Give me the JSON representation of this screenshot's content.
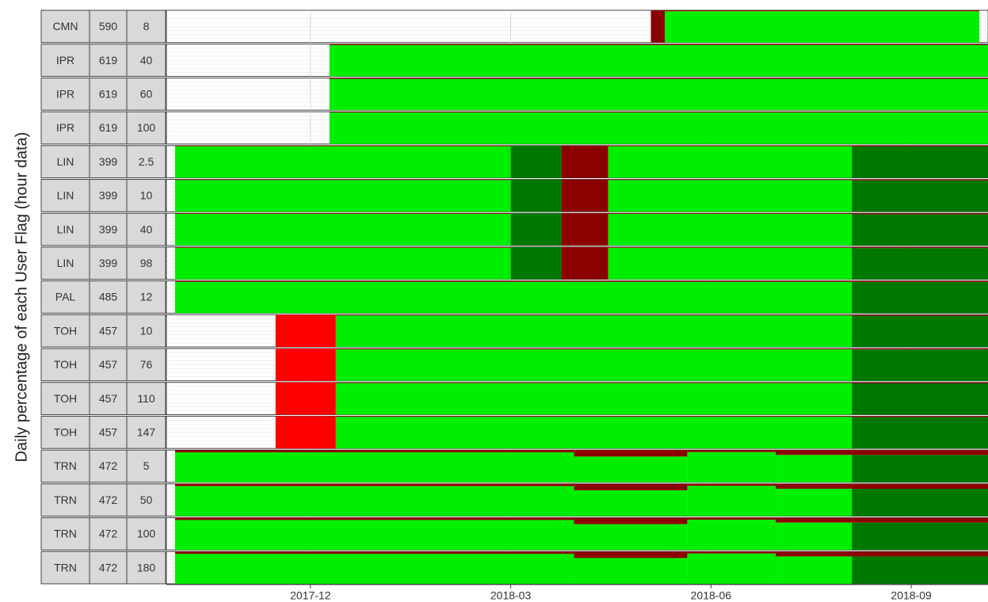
{
  "chart_data": {
    "type": "facet-timeline",
    "y_label": "Daily percentage of each User Flag (hour data)",
    "xlim": [
      0.842,
      13.15
    ],
    "xticks": [
      {
        "value": 3,
        "label": "2017-12"
      },
      {
        "value": 6,
        "label": "2018-03"
      },
      {
        "value": 9,
        "label": "2018-06"
      },
      {
        "value": 12,
        "label": "2018-09"
      }
    ],
    "ylim": [
      0,
      100
    ],
    "grid": true,
    "flag_colors": [
      "#00ee00",
      "#007800",
      "#ff0000",
      "#8b0000"
    ],
    "rows": [
      {
        "labels": [
          "CMN",
          "590",
          "8"
        ],
        "periods": [
          {
            "start": 8.1,
            "end": 8.31,
            "shares": [
              0,
              0,
              0,
              100
            ]
          },
          {
            "start": 8.31,
            "end": 13.02,
            "shares": [
              97,
              0,
              0,
              3
            ]
          }
        ]
      },
      {
        "labels": [
          "IPR",
          "619",
          "40"
        ],
        "periods": [
          {
            "start": 3.285,
            "end": 13.15,
            "shares": [
              97,
              0,
              0,
              3
            ]
          }
        ]
      },
      {
        "labels": [
          "IPR",
          "619",
          "60"
        ],
        "periods": [
          {
            "start": 3.285,
            "end": 13.15,
            "shares": [
              97,
              0,
              0,
              3
            ]
          }
        ]
      },
      {
        "labels": [
          "IPR",
          "619",
          "100"
        ],
        "periods": [
          {
            "start": 3.285,
            "end": 13.15,
            "shares": [
              98,
              0,
              0,
              2
            ]
          }
        ]
      },
      {
        "labels": [
          "LIN",
          "399",
          "2.5"
        ],
        "periods": [
          {
            "start": 0.972,
            "end": 6.0,
            "shares": [
              98,
              0,
              0,
              2
            ]
          },
          {
            "start": 6.0,
            "end": 6.76,
            "shares": [
              0,
              100,
              0,
              0
            ]
          },
          {
            "start": 6.76,
            "end": 7.46,
            "shares": [
              0,
              0,
              0,
              100
            ]
          },
          {
            "start": 7.46,
            "end": 11.11,
            "shares": [
              98,
              0,
              0,
              2
            ]
          },
          {
            "start": 11.11,
            "end": 13.15,
            "shares": [
              0,
              97,
              0,
              3
            ]
          }
        ]
      },
      {
        "labels": [
          "LIN",
          "399",
          "10"
        ],
        "periods": [
          {
            "start": 0.972,
            "end": 6.0,
            "shares": [
              98,
              0,
              0,
              2
            ]
          },
          {
            "start": 6.0,
            "end": 6.76,
            "shares": [
              0,
              100,
              0,
              0
            ]
          },
          {
            "start": 6.76,
            "end": 7.46,
            "shares": [
              0,
              0,
              0,
              100
            ]
          },
          {
            "start": 7.46,
            "end": 11.11,
            "shares": [
              98,
              0,
              0,
              2
            ]
          },
          {
            "start": 11.11,
            "end": 13.15,
            "shares": [
              0,
              97,
              0,
              3
            ]
          }
        ]
      },
      {
        "labels": [
          "LIN",
          "399",
          "40"
        ],
        "periods": [
          {
            "start": 0.972,
            "end": 6.0,
            "shares": [
              98,
              0,
              0,
              2
            ]
          },
          {
            "start": 6.0,
            "end": 6.76,
            "shares": [
              0,
              100,
              0,
              0
            ]
          },
          {
            "start": 6.76,
            "end": 7.46,
            "shares": [
              0,
              0,
              0,
              100
            ]
          },
          {
            "start": 7.46,
            "end": 11.11,
            "shares": [
              98,
              0,
              0,
              2
            ]
          },
          {
            "start": 11.11,
            "end": 13.15,
            "shares": [
              0,
              97,
              0,
              3
            ]
          }
        ]
      },
      {
        "labels": [
          "LIN",
          "399",
          "98"
        ],
        "periods": [
          {
            "start": 0.972,
            "end": 6.0,
            "shares": [
              98,
              0,
              0,
              2
            ]
          },
          {
            "start": 6.0,
            "end": 6.76,
            "shares": [
              0,
              100,
              0,
              0
            ]
          },
          {
            "start": 6.76,
            "end": 7.46,
            "shares": [
              0,
              0,
              0,
              100
            ]
          },
          {
            "start": 7.46,
            "end": 11.11,
            "shares": [
              98,
              0,
              0,
              2
            ]
          },
          {
            "start": 11.11,
            "end": 13.15,
            "shares": [
              0,
              97,
              0,
              3
            ]
          }
        ]
      },
      {
        "labels": [
          "PAL",
          "485",
          "12"
        ],
        "periods": [
          {
            "start": 0.972,
            "end": 11.11,
            "shares": [
              97,
              0,
              0,
              3
            ]
          },
          {
            "start": 11.11,
            "end": 13.15,
            "shares": [
              0,
              97,
              0,
              3
            ]
          }
        ]
      },
      {
        "labels": [
          "TOH",
          "457",
          "10"
        ],
        "periods": [
          {
            "start": 2.478,
            "end": 3.38,
            "shares": [
              0,
              0,
              100,
              0
            ]
          },
          {
            "start": 3.38,
            "end": 11.11,
            "shares": [
              98,
              0,
              0,
              2
            ]
          },
          {
            "start": 11.11,
            "end": 13.15,
            "shares": [
              0,
              97,
              0,
              3
            ]
          }
        ]
      },
      {
        "labels": [
          "TOH",
          "457",
          "76"
        ],
        "periods": [
          {
            "start": 2.478,
            "end": 3.38,
            "shares": [
              0,
              0,
              100,
              0
            ]
          },
          {
            "start": 3.38,
            "end": 11.11,
            "shares": [
              98,
              0,
              0,
              2
            ]
          },
          {
            "start": 11.11,
            "end": 13.15,
            "shares": [
              0,
              97,
              0,
              3
            ]
          }
        ]
      },
      {
        "labels": [
          "TOH",
          "457",
          "110"
        ],
        "periods": [
          {
            "start": 2.478,
            "end": 3.38,
            "shares": [
              0,
              0,
              100,
              0
            ]
          },
          {
            "start": 3.38,
            "end": 11.11,
            "shares": [
              98,
              0,
              0,
              2
            ]
          },
          {
            "start": 11.11,
            "end": 13.15,
            "shares": [
              0,
              97,
              0,
              3
            ]
          }
        ]
      },
      {
        "labels": [
          "TOH",
          "457",
          "147"
        ],
        "periods": [
          {
            "start": 2.478,
            "end": 3.38,
            "shares": [
              0,
              0,
              100,
              0
            ]
          },
          {
            "start": 3.38,
            "end": 11.11,
            "shares": [
              98,
              0,
              0,
              2
            ]
          },
          {
            "start": 11.11,
            "end": 13.15,
            "shares": [
              0,
              97,
              0,
              3
            ]
          }
        ]
      },
      {
        "labels": [
          "TRN",
          "472",
          "5"
        ],
        "periods": [
          {
            "start": 0.972,
            "end": 6.949,
            "shares": [
              93,
              0,
              0,
              7
            ]
          },
          {
            "start": 6.949,
            "end": 8.645,
            "shares": [
              80,
              0,
              0,
              20
            ]
          },
          {
            "start": 8.645,
            "end": 9.97,
            "shares": [
              94,
              0,
              0,
              6
            ]
          },
          {
            "start": 9.97,
            "end": 11.11,
            "shares": [
              85,
              0,
              0,
              15
            ]
          },
          {
            "start": 11.11,
            "end": 13.15,
            "shares": [
              0,
              85,
              0,
              15
            ]
          }
        ]
      },
      {
        "labels": [
          "TRN",
          "472",
          "50"
        ],
        "periods": [
          {
            "start": 0.972,
            "end": 6.949,
            "shares": [
              93,
              0,
              0,
              7
            ]
          },
          {
            "start": 6.949,
            "end": 8.645,
            "shares": [
              80,
              0,
              0,
              20
            ]
          },
          {
            "start": 8.645,
            "end": 9.97,
            "shares": [
              94,
              0,
              0,
              6
            ]
          },
          {
            "start": 9.97,
            "end": 11.11,
            "shares": [
              85,
              0,
              0,
              15
            ]
          },
          {
            "start": 11.11,
            "end": 13.15,
            "shares": [
              0,
              85,
              0,
              15
            ]
          }
        ]
      },
      {
        "labels": [
          "TRN",
          "472",
          "100"
        ],
        "periods": [
          {
            "start": 0.972,
            "end": 6.949,
            "shares": [
              93,
              0,
              0,
              7
            ]
          },
          {
            "start": 6.949,
            "end": 8.645,
            "shares": [
              80,
              0,
              0,
              20
            ]
          },
          {
            "start": 8.645,
            "end": 9.97,
            "shares": [
              94,
              0,
              0,
              6
            ]
          },
          {
            "start": 9.97,
            "end": 11.11,
            "shares": [
              85,
              0,
              0,
              15
            ]
          },
          {
            "start": 11.11,
            "end": 13.15,
            "shares": [
              0,
              85,
              0,
              15
            ]
          }
        ]
      },
      {
        "labels": [
          "TRN",
          "472",
          "180"
        ],
        "periods": [
          {
            "start": 0.972,
            "end": 6.949,
            "shares": [
              93,
              0,
              0,
              7
            ]
          },
          {
            "start": 6.949,
            "end": 8.645,
            "shares": [
              80,
              0,
              0,
              20
            ]
          },
          {
            "start": 8.645,
            "end": 9.97,
            "shares": [
              94,
              0,
              0,
              6
            ]
          },
          {
            "start": 9.97,
            "end": 11.11,
            "shares": [
              85,
              0,
              0,
              15
            ]
          },
          {
            "start": 11.11,
            "end": 13.15,
            "shares": [
              0,
              85,
              0,
              15
            ]
          }
        ]
      }
    ]
  }
}
